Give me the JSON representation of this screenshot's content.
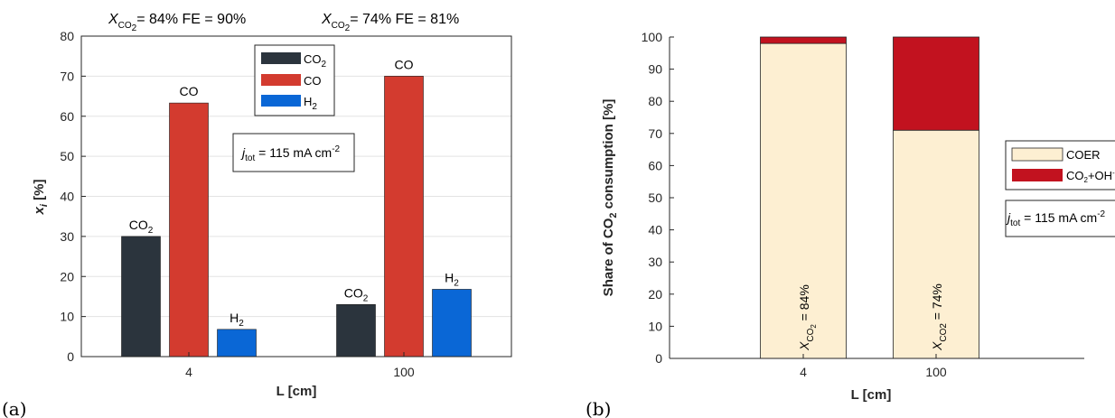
{
  "chart_data": [
    {
      "panel": "(a)",
      "type": "bar",
      "title_left": {
        "X": "X",
        "X_sub": "CO",
        "X_sub2": "2",
        "rest": "= 84%   FE = 90%"
      },
      "title_right": {
        "X": "X",
        "X_sub": "CO",
        "X_sub2": "2",
        "rest": "= 74%   FE = 81%"
      },
      "xlabel": "L [cm]",
      "ylabel_main": "x",
      "ylabel_sub": "i",
      "ylabel_unit": " [%]",
      "ylim": [
        0,
        80
      ],
      "yticks": [
        0,
        10,
        20,
        30,
        40,
        50,
        60,
        70,
        80
      ],
      "categories": [
        "4",
        "100"
      ],
      "series": [
        {
          "name": "CO",
          "name_sub": "2",
          "color": "#2b343d",
          "values": [
            30,
            13
          ]
        },
        {
          "name": "CO",
          "name_sub": "",
          "color": "#d33b2f",
          "values": [
            63.3,
            70
          ]
        },
        {
          "name": "H",
          "name_sub": "2",
          "color": "#0a67d6",
          "values": [
            6.8,
            16.8
          ]
        }
      ],
      "annotation": {
        "j": "j",
        "j_sub": "tot",
        "text": " = 115 mA cm",
        "sup": "-2"
      },
      "grid": true,
      "legend_position": "top-center"
    },
    {
      "panel": "(b)",
      "type": "bar",
      "stacked": true,
      "xlabel": "L [cm]",
      "ylabel_pre": "Share of CO",
      "ylabel_sub": "2",
      "ylabel_post": " consumption [%]",
      "ylim": [
        0,
        100
      ],
      "yticks": [
        0,
        10,
        20,
        30,
        40,
        50,
        60,
        70,
        80,
        90,
        100
      ],
      "categories": [
        "4",
        "100"
      ],
      "series": [
        {
          "name": "COER",
          "color": "#fdefd2",
          "values": [
            98,
            71
          ]
        },
        {
          "name": "CO",
          "name_sub": "2",
          "name_post": "+OH",
          "name_sup": "-",
          "color": "#c2121f",
          "values": [
            2,
            29
          ]
        }
      ],
      "bar_labels": [
        {
          "X": "X",
          "sub": "CO",
          "sub2": "2",
          "rest": " = 84%"
        },
        {
          "X": "X",
          "sub": "CO2",
          "sub2": "",
          "rest": " = 74%"
        }
      ],
      "annotation": {
        "j": "j",
        "j_sub": "tot",
        "text": " = 115 mA cm",
        "sup": "-2"
      },
      "legend_position": "right"
    }
  ]
}
